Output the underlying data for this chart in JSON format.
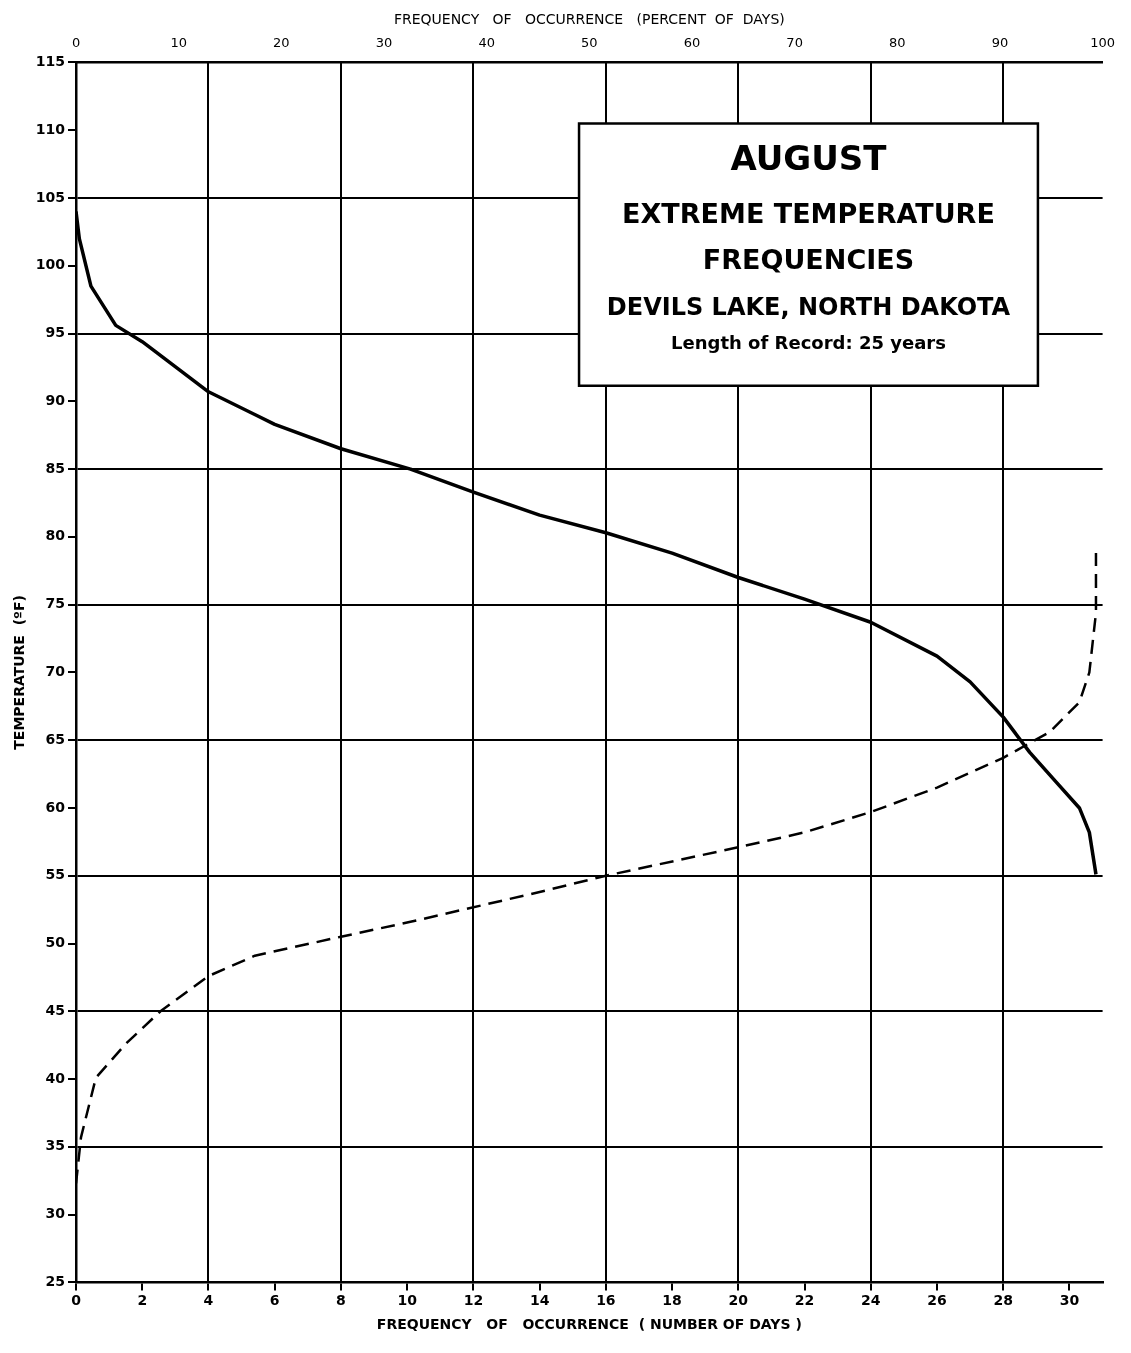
{
  "chart_data": {
    "type": "line",
    "title": "AUGUST",
    "subtitle": "EXTREME TEMPERATURE FREQUENCIES",
    "annotations": [
      "DEVILS LAKE, NORTH DAKOTA",
      "Length of Record: 25 years"
    ],
    "xlabel": "FREQUENCY   OF   OCCURRENCE  ( NUMBER OF DAYS )",
    "x2label": "FREQUENCY   OF   OCCURRENCE   (PERCENT  OF  DAYS)",
    "ylabel": "TEMPERATURE  (ºF)",
    "xlim": [
      0,
      31
    ],
    "xticks": [
      0,
      2,
      4,
      6,
      8,
      10,
      12,
      14,
      16,
      18,
      20,
      22,
      24,
      26,
      28,
      30
    ],
    "x2lim": [
      0,
      100
    ],
    "x2ticks": [
      0,
      10,
      20,
      30,
      40,
      50,
      60,
      70,
      80,
      90,
      100
    ],
    "ylim": [
      25,
      115
    ],
    "yticks": [
      25,
      30,
      35,
      40,
      45,
      50,
      55,
      60,
      65,
      70,
      75,
      80,
      85,
      90,
      95,
      100,
      105,
      110,
      115
    ],
    "grid": true,
    "legend": false,
    "marker": "none",
    "series": [
      {
        "color": "#000000",
        "line_style": "solid",
        "x": [
          0,
          0.1,
          0.45,
          1.2,
          2,
          4,
          6,
          8,
          10.1,
          12,
          14,
          16,
          18,
          20,
          22,
          24,
          26,
          27,
          28,
          28.8,
          29.6,
          30.3,
          30.6,
          30.8
        ],
        "values": [
          104,
          102,
          98.5,
          95.6,
          94.4,
          90.7,
          88.3,
          86.5,
          85,
          83.3,
          81.6,
          80.3,
          78.8,
          77,
          75.4,
          73.7,
          71.2,
          69.3,
          66.7,
          64.1,
          61.9,
          60,
          58.2,
          55.1
        ]
      },
      {
        "color": "#000000",
        "line_style": "dashed",
        "x": [
          0,
          0.15,
          0.6,
          1.5,
          2.55,
          4,
          5.4,
          8,
          10.1,
          14,
          16,
          20,
          22,
          24,
          26,
          28,
          29.4,
          30.3,
          30.6,
          30.8,
          30.8
        ],
        "values": [
          32.3,
          35.7,
          40.1,
          42.6,
          45,
          47.6,
          49.1,
          50.5,
          51.6,
          53.8,
          55,
          57.1,
          58.2,
          59.7,
          61.5,
          63.7,
          65.6,
          67.8,
          70,
          74.4,
          78.8
        ]
      }
    ]
  }
}
